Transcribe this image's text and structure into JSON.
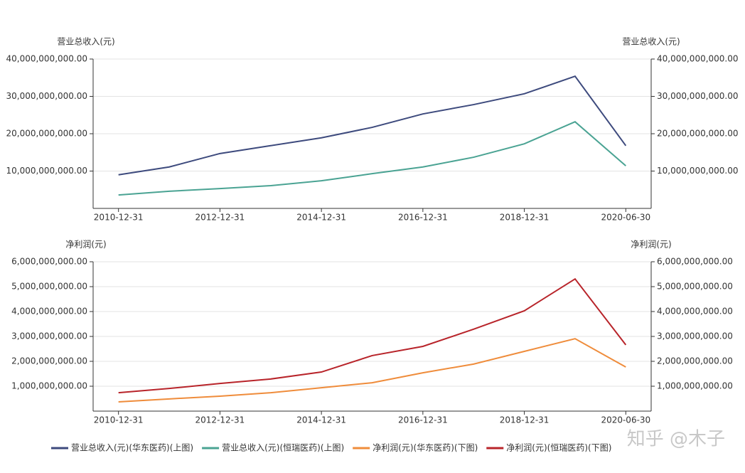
{
  "chart_data": [
    {
      "type": "line",
      "y_label": "营业总收入(元)",
      "categories": [
        "2010-12-31",
        null,
        "2012-12-31",
        null,
        "2014-12-31",
        null,
        "2016-12-31",
        null,
        "2018-12-31",
        null,
        "2020-06-30"
      ],
      "ylim": [
        0,
        40000000000
      ],
      "yticks": [
        {
          "value": 10000000000,
          "label": "10,000,000,000.00"
        },
        {
          "value": 20000000000,
          "label": "20,000,000,000.00"
        },
        {
          "value": 30000000000,
          "label": "30,000,000,000.00"
        },
        {
          "value": 40000000000,
          "label": "40,000,000,000.00"
        }
      ],
      "grid": true,
      "series": [
        {
          "name": "营业总收入(元)(华东医药)(上图)",
          "color": "#3d4a7d",
          "values": [
            9000000000,
            11100000000,
            14700000000,
            16800000000,
            18900000000,
            21700000000,
            25300000000,
            27800000000,
            30700000000,
            35400000000,
            16800000000
          ]
        },
        {
          "name": "营业总收入(元)(恒瑞医药)(上图)",
          "color": "#4aa393",
          "values": [
            3600000000,
            4600000000,
            5300000000,
            6100000000,
            7400000000,
            9300000000,
            11100000000,
            13700000000,
            17300000000,
            23200000000,
            11400000000
          ]
        }
      ]
    },
    {
      "type": "line",
      "y_label": "净利润(元)",
      "categories": [
        "2010-12-31",
        null,
        "2012-12-31",
        null,
        "2014-12-31",
        null,
        "2016-12-31",
        null,
        "2018-12-31",
        null,
        "2020-06-30"
      ],
      "ylim": [
        0,
        6000000000
      ],
      "yticks": [
        {
          "value": 1000000000,
          "label": "1,000,000,000.00"
        },
        {
          "value": 2000000000,
          "label": "2,000,000,000.00"
        },
        {
          "value": 3000000000,
          "label": "3,000,000,000.00"
        },
        {
          "value": 4000000000,
          "label": "4,000,000,000.00"
        },
        {
          "value": 5000000000,
          "label": "5,000,000,000.00"
        },
        {
          "value": 6000000000,
          "label": "6,000,000,000.00"
        }
      ],
      "grid": true,
      "series": [
        {
          "name": "净利润(元)(华东医药)(下图)",
          "color": "#ef8c3b",
          "values": [
            370000000,
            490000000,
            600000000,
            740000000,
            940000000,
            1140000000,
            1540000000,
            1890000000,
            2400000000,
            2910000000,
            1770000000
          ]
        },
        {
          "name": "净利润(元)(恒瑞医药)(下图)",
          "color": "#b8242a",
          "values": [
            740000000,
            910000000,
            1110000000,
            1290000000,
            1570000000,
            2230000000,
            2600000000,
            3290000000,
            4030000000,
            5310000000,
            2660000000
          ]
        }
      ]
    }
  ],
  "watermark": "知乎 @木子"
}
